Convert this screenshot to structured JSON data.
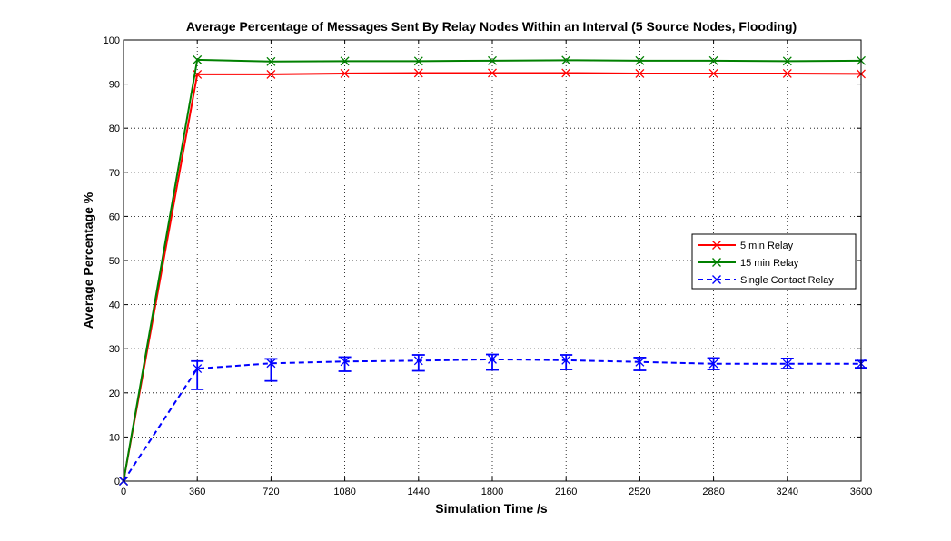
{
  "chart_data": {
    "type": "line",
    "title": "Average Percentage of Messages Sent By Relay Nodes Within an Interval (5 Source Nodes, Flooding)",
    "xlabel": "Simulation Time /s",
    "ylabel": "Average Percentage %",
    "xlim": [
      0,
      3600
    ],
    "ylim": [
      0,
      100
    ],
    "xticks": [
      0,
      360,
      720,
      1080,
      1440,
      1800,
      2160,
      2520,
      2880,
      3240,
      3600
    ],
    "yticks": [
      0,
      10,
      20,
      30,
      40,
      50,
      60,
      70,
      80,
      90,
      100
    ],
    "grid": true,
    "legend_position": "right",
    "x": [
      0,
      360,
      720,
      1080,
      1440,
      1800,
      2160,
      2520,
      2880,
      3240,
      3600
    ],
    "series": [
      {
        "name": "5 min Relay",
        "color": "#ff0000",
        "line_style": "solid",
        "marker": "x",
        "values": [
          0,
          92.2,
          92.2,
          92.4,
          92.5,
          92.5,
          92.5,
          92.4,
          92.4,
          92.4,
          92.3
        ]
      },
      {
        "name": "15 min Relay",
        "color": "#008000",
        "line_style": "solid",
        "marker": "x",
        "values": [
          0,
          95.5,
          95.1,
          95.2,
          95.2,
          95.3,
          95.4,
          95.3,
          95.3,
          95.2,
          95.3
        ]
      },
      {
        "name": "Single Contact Relay",
        "color": "#0000ff",
        "line_style": "dashed",
        "marker": "x",
        "values": [
          0,
          25.5,
          26.7,
          27.1,
          27.3,
          27.6,
          27.4,
          27.0,
          26.6,
          26.6,
          26.6
        ],
        "error_low": [
          0,
          20.8,
          22.7,
          24.9,
          25.0,
          25.2,
          25.3,
          25.1,
          25.3,
          25.5,
          25.7
        ],
        "error_high": [
          0,
          27.2,
          27.7,
          28.1,
          28.6,
          28.7,
          28.6,
          28.0,
          27.9,
          27.8,
          27.3
        ]
      }
    ]
  }
}
